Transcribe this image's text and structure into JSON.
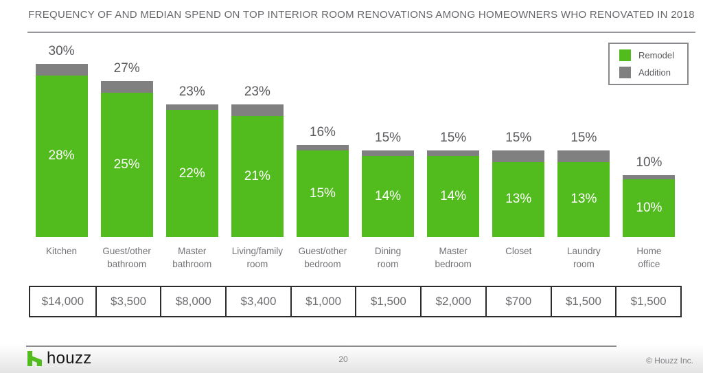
{
  "title": "FREQUENCY OF AND MEDIAN SPEND ON TOP INTERIOR ROOM RENOVATIONS AMONG HOMEOWNERS WHO RENOVATED IN 2018",
  "legend": {
    "items": [
      {
        "label": "Remodel",
        "color": "#52bb1e"
      },
      {
        "label": "Addition",
        "color": "#808080"
      }
    ]
  },
  "chart_data": {
    "type": "bar",
    "stacked": true,
    "title": "FREQUENCY OF AND MEDIAN SPEND ON TOP INTERIOR ROOM RENOVATIONS AMONG HOMEOWNERS WHO RENOVATED IN 2018",
    "unit": "%",
    "ylim": [
      0,
      30
    ],
    "grid": false,
    "legend_position": "top-right",
    "categories": [
      "Kitchen",
      "Guest/other bathroom",
      "Master bathroom",
      "Living/family room",
      "Guest/other bedroom",
      "Dining room",
      "Master bedroom",
      "Closet",
      "Laundry room",
      "Home office"
    ],
    "category_lines": [
      [
        "Kitchen"
      ],
      [
        "Guest/other",
        "bathroom"
      ],
      [
        "Master",
        "bathroom"
      ],
      [
        "Living/family",
        "room"
      ],
      [
        "Guest/other",
        "bedroom"
      ],
      [
        "Dining",
        "room"
      ],
      [
        "Master",
        "bedroom"
      ],
      [
        "Closet"
      ],
      [
        "Laundry",
        "room"
      ],
      [
        "Home",
        "office"
      ]
    ],
    "series": [
      {
        "name": "Remodel",
        "color": "#52bb1e",
        "values": [
          28,
          25,
          22,
          21,
          15,
          14,
          14,
          13,
          13,
          10
        ]
      },
      {
        "name": "Addition",
        "color": "#808080",
        "values": [
          2,
          2,
          1,
          2,
          1,
          1,
          1,
          2,
          2,
          0
        ]
      }
    ],
    "totals": [
      30,
      27,
      23,
      23,
      16,
      15,
      15,
      15,
      15,
      10
    ],
    "median_spend_row": [
      "$14,000",
      "$3,500",
      "$8,000",
      "$3,400",
      "$1,000",
      "$1,500",
      "$2,000",
      "$700",
      "$1,500",
      "$1,500"
    ]
  },
  "footer": {
    "brand": "houzz",
    "page_number": "20",
    "copyright": "© Houzz Inc."
  }
}
